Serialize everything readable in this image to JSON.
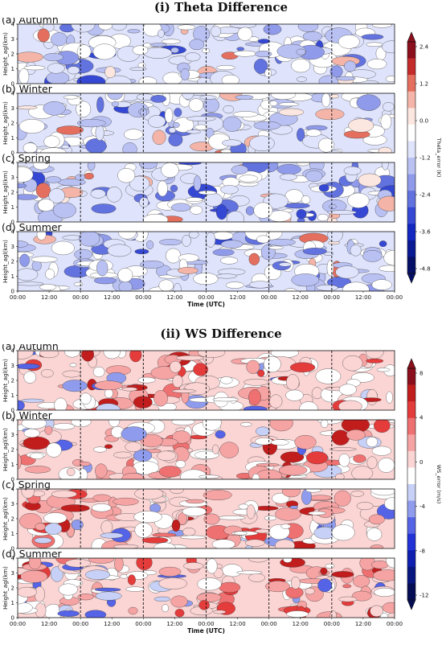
{
  "figure": {
    "sections": [
      {
        "title": "(i) Theta Difference",
        "colorbar_label": "Theta_error (K)",
        "colorbar_ticks": [
          "2.4",
          "1.2",
          "0.0",
          "-1.2",
          "-2.4",
          "-3.6",
          "-4.8"
        ],
        "colorbar_colors": [
          "#8b0f1c",
          "#c42b2b",
          "#e46f5f",
          "#f4b5a8",
          "#fce6e0",
          "#ffffff",
          "#dfe3fb",
          "#b9c1f3",
          "#8f9aea",
          "#6272df",
          "#3548d4",
          "#1127c0",
          "#0a1a94",
          "#050f66"
        ],
        "dominant": "blue"
      },
      {
        "title": "(ii) WS Difference",
        "colorbar_label": "WS_error (m/s)",
        "colorbar_ticks": [
          "8",
          "4",
          "0",
          "-4",
          "-8",
          "-12"
        ],
        "colorbar_colors": [
          "#8b0f1c",
          "#c21d1d",
          "#e43b3b",
          "#ef7070",
          "#f6a3a3",
          "#fbd4d4",
          "#ffffff",
          "#c7d0f6",
          "#8f9ced",
          "#5563e6",
          "#2132d6",
          "#0f1fb0",
          "#081680",
          "#050d55"
        ],
        "dominant": "red"
      }
    ],
    "panels": [
      "(a) Autumn",
      "(b) Winter",
      "(c) Spring",
      "(d) Summer"
    ],
    "y_label": "Height_agl(km)",
    "y_ticks": [
      "0",
      "1",
      "2",
      "3",
      "4"
    ],
    "x_ticks": [
      "00:00",
      "12:00",
      "00:00",
      "12:00",
      "00:00",
      "12:00",
      "00:00",
      "12:00",
      "00:00",
      "12:00",
      "00:00",
      "12:00",
      "00:00"
    ],
    "x_title": "Time (UTC)"
  },
  "chart_data": [
    {
      "type": "heatmap",
      "title": "(i) Theta Difference",
      "panels": [
        "(a) Autumn",
        "(b) Winter",
        "(c) Spring",
        "(d) Summer"
      ],
      "xlabel": "Time (UTC)",
      "ylabel": "Height_agl(km)",
      "ylim": [
        0,
        4
      ],
      "x_ticks": [
        "00:00",
        "12:00",
        "00:00",
        "12:00",
        "00:00",
        "12:00",
        "00:00",
        "12:00",
        "00:00",
        "12:00",
        "00:00",
        "12:00",
        "00:00"
      ],
      "day_boundaries_dashed": 5,
      "colorbar": {
        "label": "Theta_error (K)",
        "range": [
          -4.8,
          2.4
        ],
        "ticks": [
          2.4,
          1.2,
          0.0,
          -1.2,
          -2.4,
          -3.6,
          -4.8
        ]
      }
    },
    {
      "type": "heatmap",
      "title": "(ii) WS Difference",
      "panels": [
        "(a) Autumn",
        "(b) Winter",
        "(c) Spring",
        "(d) Summer"
      ],
      "xlabel": "Time (UTC)",
      "ylabel": "Height_agl(km)",
      "ylim": [
        0,
        4
      ],
      "x_ticks": [
        "00:00",
        "12:00",
        "00:00",
        "12:00",
        "00:00",
        "12:00",
        "00:00",
        "12:00",
        "00:00",
        "12:00",
        "00:00",
        "12:00",
        "00:00"
      ],
      "day_boundaries_dashed": 5,
      "colorbar": {
        "label": "WS_error (m/s)",
        "range": [
          -12,
          8
        ],
        "ticks": [
          8,
          4,
          0,
          -4,
          -8,
          -12
        ]
      }
    }
  ]
}
